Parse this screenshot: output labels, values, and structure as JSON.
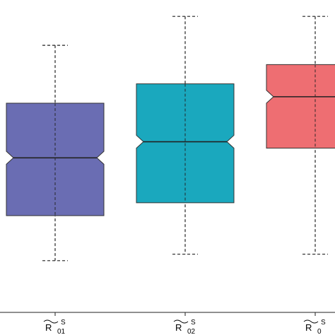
{
  "chart_data": {
    "type": "boxplot",
    "notched": true,
    "title": "",
    "xlabel": "",
    "ylabel": "",
    "ylim": [
      0.05,
      1.0
    ],
    "grid": false,
    "legend": "none",
    "categories": [
      {
        "base": "R",
        "sub": "01",
        "sup": "S"
      },
      {
        "base": "R",
        "sub": "02",
        "sup": "S"
      },
      {
        "base": "R",
        "sub": "0",
        "sup": "S"
      }
    ],
    "boxes": [
      {
        "whisker_low": 0.2,
        "q1": 0.34,
        "median": 0.52,
        "q3": 0.69,
        "whisker_high": 0.87,
        "notch_low": 0.5,
        "notch_high": 0.54,
        "color": "#6a6db3"
      },
      {
        "whisker_low": 0.22,
        "q1": 0.38,
        "median": 0.57,
        "q3": 0.75,
        "whisker_high": 0.96,
        "notch_low": 0.55,
        "notch_high": 0.59,
        "color": "#1aa8be"
      },
      {
        "whisker_low": 0.22,
        "q1": 0.55,
        "median": 0.71,
        "q3": 0.81,
        "whisker_high": 0.96,
        "notch_low": 0.69,
        "notch_high": 0.73,
        "color": "#ee6e72"
      }
    ]
  }
}
